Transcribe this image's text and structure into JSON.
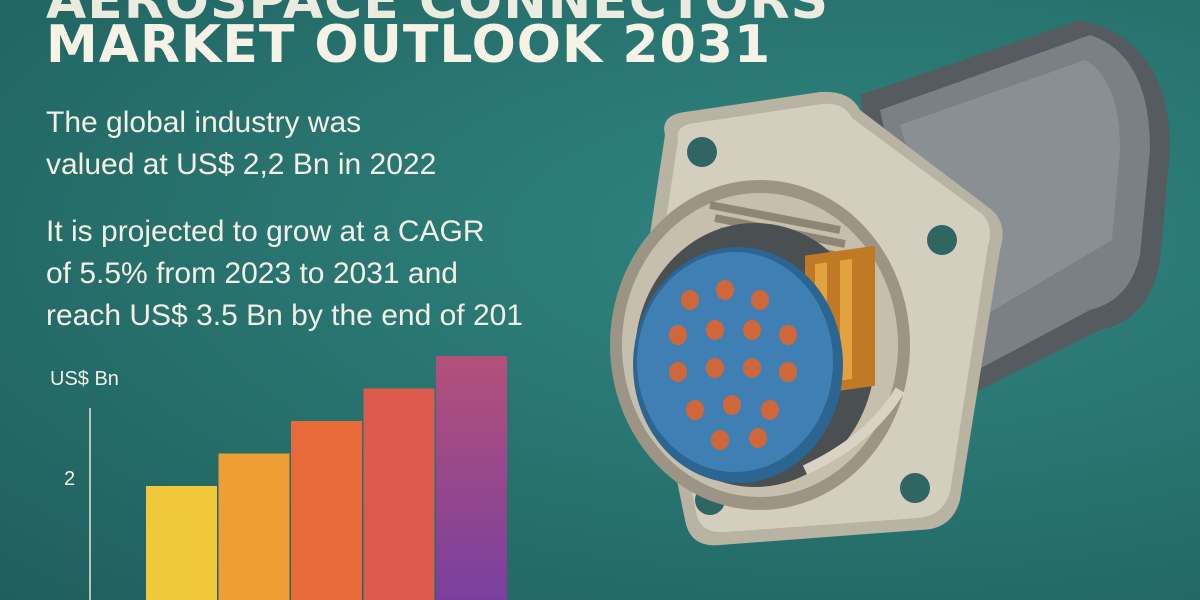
{
  "heading": {
    "top_line": "AEROSPACE CONNECTORS",
    "main_line": "MARKET OUTLOOK 2031"
  },
  "paragraphs": {
    "valuation_line1": "The global industry was",
    "valuation_line2": "valued at US$ 2,2 Bn in 2022",
    "projection_line1": "It is projected to grow at a CAGR",
    "projection_line2": "of 5.5% from 2023 to 2031 and",
    "projection_line3": "reach US$ 3.5 Bn by the end of 201"
  },
  "chart_data": {
    "type": "bar",
    "ylabel": "US$ Bn",
    "yticks": [
      2
    ],
    "ylim": [
      0,
      3.5
    ],
    "categories": [
      "",
      "",
      "",
      "",
      ""
    ],
    "values": [
      2.0,
      2.3,
      2.6,
      2.9,
      3.2
    ],
    "colors": [
      "#f0c93a",
      "#ef9d35",
      "#e86a3b",
      "#dd5a4e",
      "#b4507a"
    ],
    "color_gradient_bottom": "#7a3f9e",
    "grid": false,
    "legend": "none"
  },
  "illustration": {
    "icon": "aerospace-connector-illustration",
    "colors": {
      "metal": "#c8c2b2",
      "barrel": "#6e7377",
      "insert": "#3f7fb4",
      "pins": "#d0673a",
      "contacts": "#d9922e"
    }
  }
}
